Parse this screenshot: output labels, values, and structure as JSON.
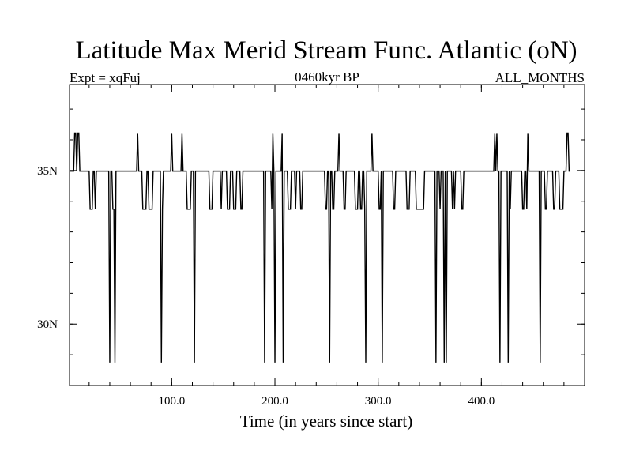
{
  "chart_data": {
    "type": "line",
    "title": "Latitude Max Merid Stream Func. Atlantic (oN)",
    "subtitle_left": "Expt = xqFuj",
    "subtitle_center": "0460kyr BP",
    "subtitle_right": "ALL_MONTHS",
    "xlabel": "Time (in years since start)",
    "ylabel": "",
    "xlim": [
      1,
      500
    ],
    "ylim": [
      28,
      37.8
    ],
    "x_major_ticks": [
      100,
      200,
      300,
      400
    ],
    "x_tick_labels": [
      "100.0",
      "200.0",
      "300.0",
      "400.0"
    ],
    "x_minor_step": 20,
    "y_major_ticks": [
      30,
      35
    ],
    "y_tick_labels": [
      "30N",
      "35N"
    ],
    "y_minor_step": 1,
    "series": [
      {
        "name": "Latitude Max Merid Stream Func",
        "color": "#000000",
        "x_start": 1,
        "x_step": 1,
        "y": [
          34.98,
          34.98,
          34.98,
          34.98,
          34.98,
          36.22,
          36.22,
          34.98,
          36.22,
          36.22,
          34.98,
          34.98,
          34.98,
          34.98,
          34.98,
          34.98,
          34.98,
          34.98,
          34.98,
          34.98,
          33.74,
          33.74,
          33.74,
          34.98,
          34.98,
          33.74,
          34.98,
          34.98,
          34.98,
          34.98,
          34.98,
          34.98,
          34.98,
          34.98,
          34.98,
          34.98,
          34.98,
          34.98,
          34.98,
          28.75,
          34.98,
          34.98,
          33.74,
          33.74,
          28.75,
          34.98,
          34.98,
          34.98,
          34.98,
          34.98,
          34.98,
          34.98,
          34.98,
          34.98,
          34.98,
          34.98,
          34.98,
          34.98,
          34.98,
          34.98,
          34.98,
          34.98,
          34.98,
          34.98,
          34.98,
          34.98,
          36.22,
          34.98,
          34.98,
          34.98,
          34.98,
          33.74,
          33.74,
          33.74,
          33.74,
          34.98,
          34.98,
          33.74,
          33.74,
          33.74,
          33.74,
          34.98,
          34.98,
          34.98,
          34.98,
          34.98,
          34.98,
          34.98,
          34.98,
          28.75,
          33.74,
          34.98,
          34.98,
          34.98,
          34.98,
          34.98,
          34.98,
          34.98,
          34.98,
          36.22,
          34.98,
          34.98,
          34.98,
          34.98,
          34.98,
          34.98,
          34.98,
          34.98,
          34.98,
          36.22,
          34.98,
          34.98,
          34.98,
          34.98,
          33.74,
          33.74,
          33.74,
          33.74,
          34.98,
          34.98,
          34.98,
          28.75,
          34.98,
          34.98,
          34.98,
          34.98,
          34.98,
          34.98,
          34.98,
          34.98,
          34.98,
          34.98,
          34.98,
          34.98,
          34.98,
          34.98,
          33.74,
          33.74,
          33.74,
          34.98,
          34.98,
          34.98,
          34.98,
          34.98,
          34.98,
          34.98,
          34.98,
          33.74,
          34.98,
          34.98,
          34.98,
          34.98,
          34.98,
          33.74,
          33.74,
          33.74,
          34.98,
          34.98,
          34.98,
          33.74,
          33.74,
          33.74,
          34.98,
          34.98,
          34.98,
          34.98,
          33.74,
          33.74,
          34.98,
          34.98,
          34.98,
          34.98,
          34.98,
          34.98,
          34.98,
          34.98,
          34.98,
          34.98,
          34.98,
          34.98,
          34.98,
          34.98,
          34.98,
          34.98,
          34.98,
          34.98,
          34.98,
          34.98,
          34.98,
          28.75,
          34.98,
          34.98,
          34.98,
          34.98,
          34.98,
          34.98,
          33.74,
          36.22,
          34.98,
          28.75,
          34.98,
          34.98,
          34.98,
          34.98,
          34.98,
          34.98,
          36.22,
          28.75,
          34.98,
          34.98,
          34.98,
          34.98,
          33.74,
          33.74,
          33.74,
          34.98,
          34.98,
          34.98,
          34.98,
          33.74,
          34.98,
          34.98,
          34.98,
          34.98,
          33.74,
          33.74,
          34.98,
          34.98,
          34.98,
          34.98,
          34.98,
          34.98,
          34.98,
          34.98,
          34.98,
          34.98,
          34.98,
          34.98,
          34.98,
          34.98,
          34.98,
          34.98,
          34.98,
          34.98,
          34.98,
          34.98,
          34.98,
          34.98,
          33.74,
          33.74,
          34.98,
          34.98,
          28.75,
          34.98,
          34.98,
          33.74,
          33.74,
          34.98,
          34.98,
          34.98,
          34.98,
          36.22,
          34.98,
          34.98,
          34.98,
          34.98,
          33.74,
          33.74,
          34.98,
          34.98,
          34.98,
          34.98,
          34.98,
          34.98,
          34.98,
          34.98,
          34.98,
          33.74,
          33.74,
          33.74,
          34.98,
          34.98,
          33.74,
          33.74,
          34.98,
          34.98,
          33.74,
          28.75,
          34.98,
          34.98,
          34.98,
          34.98,
          34.98,
          36.22,
          34.98,
          34.98,
          34.98,
          34.98,
          34.98,
          34.98,
          33.74,
          33.74,
          34.98,
          28.75,
          34.98,
          34.98,
          34.98,
          34.98,
          34.98,
          34.98,
          34.98,
          34.98,
          34.98,
          34.98,
          33.74,
          33.74,
          34.98,
          34.98,
          34.98,
          34.98,
          34.98,
          34.98,
          34.98,
          34.98,
          34.98,
          34.98,
          34.98,
          33.74,
          33.74,
          33.74,
          34.98,
          34.98,
          34.98,
          34.98,
          34.98,
          34.98,
          33.74,
          33.74,
          33.74,
          33.74,
          33.74,
          33.74,
          33.74,
          33.74,
          34.98,
          34.98,
          34.98,
          34.98,
          34.98,
          34.98,
          34.98,
          34.98,
          34.98,
          34.98,
          34.98,
          28.75,
          34.98,
          34.98,
          34.98,
          33.74,
          34.98,
          34.98,
          34.98,
          28.75,
          34.98,
          28.75,
          34.98,
          34.98,
          34.98,
          34.98,
          34.98,
          33.74,
          34.98,
          33.74,
          34.98,
          34.98,
          34.98,
          34.98,
          34.98,
          34.98,
          33.74,
          33.74,
          34.98,
          34.98,
          34.98,
          34.98,
          34.98,
          34.98,
          34.98,
          34.98,
          34.98,
          34.98,
          34.98,
          34.98,
          34.98,
          34.98,
          34.98,
          34.98,
          34.98,
          34.98,
          34.98,
          34.98,
          34.98,
          34.98,
          34.98,
          34.98,
          34.98,
          34.98,
          34.98,
          34.98,
          34.98,
          34.98,
          36.22,
          34.98,
          36.22,
          34.98,
          34.98,
          28.75,
          34.98,
          34.98,
          34.98,
          34.98,
          34.98,
          34.98,
          34.98,
          28.75,
          34.98,
          33.74,
          34.98,
          34.98,
          34.98,
          34.98,
          34.98,
          34.98,
          34.98,
          34.98,
          34.98,
          34.98,
          34.98,
          33.74,
          33.74,
          34.98,
          34.98,
          33.74,
          36.22,
          34.98,
          34.98,
          34.98,
          34.98,
          34.98,
          34.98,
          34.98,
          34.98,
          34.98,
          34.98,
          34.98,
          28.75,
          34.98,
          34.98,
          34.98,
          34.98,
          33.74,
          33.74,
          34.98,
          34.98,
          34.98,
          34.98,
          34.98,
          34.98,
          33.74,
          33.74,
          34.98,
          34.98,
          34.98,
          34.98,
          33.74,
          33.74,
          33.74,
          33.74,
          34.98,
          34.98,
          34.98,
          36.22,
          36.22,
          34.98,
          34.98
        ]
      }
    ]
  }
}
